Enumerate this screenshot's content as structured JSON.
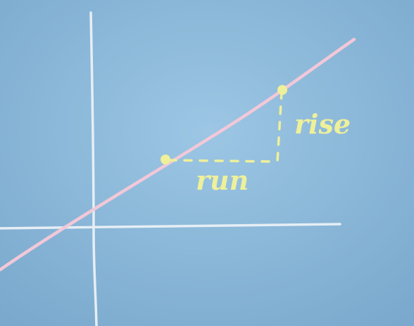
{
  "labels": {
    "run": "run",
    "rise": "rise"
  },
  "colors": {
    "background": "#86b4d6",
    "axes": "#e6eef4",
    "line": "#f2c8d8",
    "annotation": "#eef09a"
  }
}
